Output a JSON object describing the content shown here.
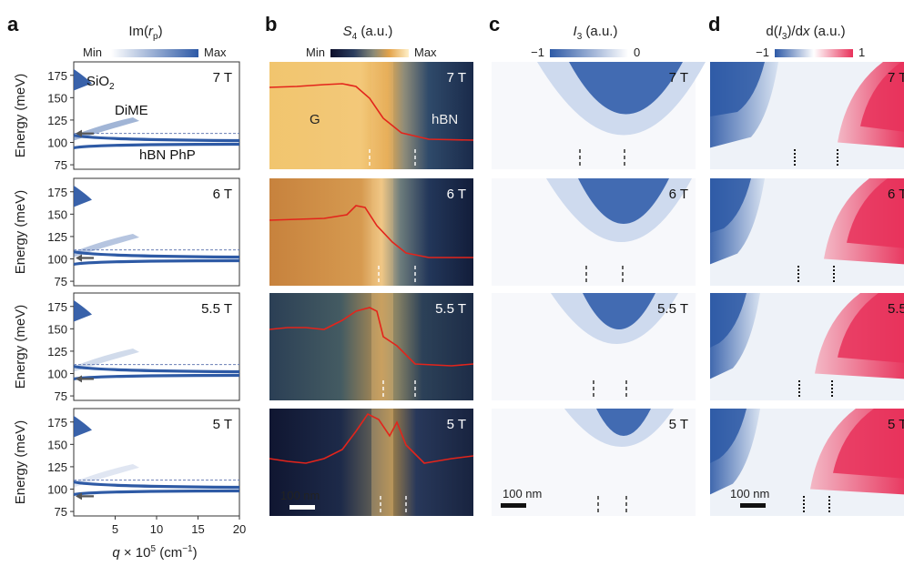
{
  "panels": {
    "a": {
      "letter": "a",
      "title_prefix": "Im(",
      "title_var": "r",
      "title_sub": "p",
      "title_suffix": ")",
      "cbar_min": "Min",
      "cbar_max": "Max",
      "ylabel": "Energy (meV)",
      "yticks": [
        "175",
        "150",
        "125",
        "100",
        "75"
      ],
      "xticks": [
        "5",
        "10",
        "15",
        "20"
      ],
      "xlabel_var": "q",
      "xlabel_mid": " × 10",
      "xlabel_sup": "5",
      "xlabel_unit": " (cm",
      "xlabel_unit_sup": "−1",
      "xlabel_end": ")",
      "labels": {
        "sio2": "SiO",
        "sio2_sub": "2",
        "dime": "DiME",
        "hbn": "hBN PhP"
      },
      "fields": [
        "7 T",
        "6 T",
        "5.5 T",
        "5 T"
      ]
    },
    "b": {
      "letter": "b",
      "title_var": "S",
      "title_sub": "4",
      "title_unit": " (a.u.)",
      "cbar_min": "Min",
      "cbar_max": "Max",
      "label_g": "G",
      "label_hbn": "hBN",
      "scalebar": "100 nm",
      "fields": [
        "7 T",
        "6 T",
        "5.5 T",
        "5 T"
      ]
    },
    "c": {
      "letter": "c",
      "title_var": "I",
      "title_sub": "3",
      "title_unit": " (a.u.)",
      "cbar_min": "−1",
      "cbar_max": "0",
      "scalebar": "100 nm",
      "fields": [
        "7 T",
        "6 T",
        "5.5 T",
        "5 T"
      ]
    },
    "d": {
      "letter": "d",
      "title_pre": "d(",
      "title_var": "I",
      "title_sub": "3",
      "title_mid": ")/d",
      "title_x": "x",
      "title_unit": " (a.u.)",
      "cbar_min": "−1",
      "cbar_max": "1",
      "scalebar": "100 nm",
      "fields": [
        "7 T",
        "6 T",
        "5.5 T",
        "5 T"
      ]
    }
  },
  "colors": {
    "blue": "#2e5aa5",
    "red_line": "#e3241b",
    "pink": "#e8315a",
    "dashed_ref": "#6a7fb5"
  }
}
